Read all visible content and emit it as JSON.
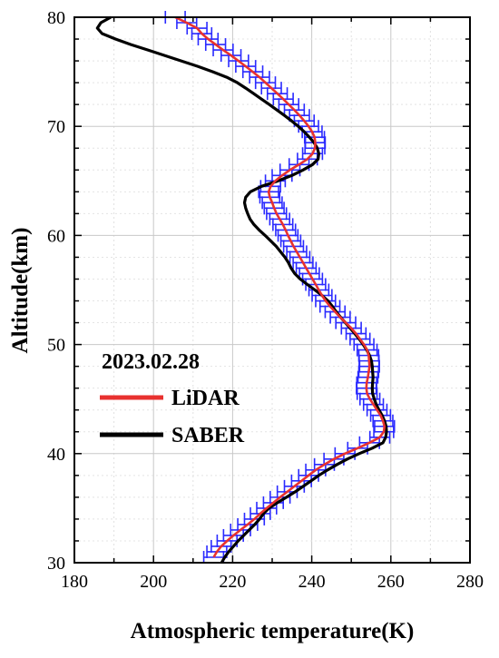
{
  "chart_data": {
    "type": "line",
    "xlabel": "Atmospheric temperature(K)",
    "ylabel": "Altitude(km)",
    "xlim": [
      180,
      280
    ],
    "ylim": [
      30,
      80
    ],
    "x_ticks": [
      180,
      200,
      220,
      240,
      260,
      280
    ],
    "y_ticks": [
      30,
      40,
      50,
      60,
      70,
      80
    ],
    "grid": true,
    "legend_position": "center-left",
    "legend_title": "2023.02.28",
    "series": [
      {
        "name": "LiDAR",
        "color": "#e8312f",
        "error_bar_color": "#2a2aff",
        "x_error": 2.5,
        "altitude": [
          30.5,
          31,
          31.5,
          32,
          32.5,
          33,
          33.5,
          34,
          34.5,
          35,
          35.5,
          36,
          36.5,
          37,
          37.5,
          38,
          38.5,
          39,
          39.5,
          40,
          40.5,
          41,
          41.5,
          42,
          42.5,
          43,
          43.5,
          44,
          44.5,
          45,
          45.5,
          46,
          46.5,
          47,
          47.5,
          48,
          48.5,
          49,
          49.5,
          50,
          50.5,
          51,
          51.5,
          52,
          52.5,
          53,
          53.5,
          54,
          54.5,
          55,
          55.5,
          56,
          56.5,
          57,
          57.5,
          58,
          58.5,
          59,
          59.5,
          60,
          60.5,
          61,
          61.5,
          62,
          62.5,
          63,
          63.5,
          64,
          64.5,
          65,
          65.5,
          66,
          66.5,
          67,
          67.5,
          68,
          68.5,
          69,
          69.5,
          70,
          70.5,
          71,
          71.5,
          72,
          72.5,
          73,
          73.5,
          74,
          74.5,
          75,
          75.5,
          76,
          76.5,
          77,
          77.5,
          78,
          78.5,
          79,
          79.5,
          80
        ],
        "temperature": [
          215.2,
          216.0,
          217.1,
          218.6,
          220.2,
          222.0,
          223.8,
          225.5,
          227.0,
          228.6,
          230.3,
          232.0,
          233.8,
          235.6,
          237.4,
          239.2,
          241.0,
          243.2,
          245.6,
          248.4,
          251.6,
          254.6,
          257.2,
          258.2,
          258.4,
          258.0,
          257.4,
          256.5,
          255.6,
          254.7,
          254.0,
          253.8,
          253.9,
          254.2,
          254.4,
          254.6,
          254.5,
          254.4,
          254.0,
          253.2,
          252.2,
          251.2,
          250.0,
          248.6,
          247.2,
          245.9,
          244.6,
          243.5,
          242.6,
          241.8,
          241.0,
          240.2,
          239.4,
          238.6,
          237.8,
          237.0,
          236.2,
          235.4,
          234.7,
          234.0,
          233.4,
          232.7,
          231.9,
          231.1,
          230.5,
          230.0,
          229.4,
          229.1,
          229.6,
          230.8,
          232.5,
          234.5,
          236.8,
          238.9,
          240.2,
          240.8,
          240.9,
          240.7,
          240.1,
          239.2,
          238.1,
          236.9,
          235.6,
          234.2,
          232.8,
          231.3,
          229.8,
          228.3,
          226.8,
          225.1,
          223.3,
          221.5,
          219.6,
          217.6,
          215.7,
          213.8,
          212.2,
          211.0,
          208.4,
          205.5
        ]
      },
      {
        "name": "SABER",
        "color": "#000000",
        "altitude": [
          30,
          30.5,
          31,
          31.5,
          32,
          32.5,
          33,
          33.5,
          34,
          34.5,
          35,
          35.5,
          36,
          36.5,
          37,
          37.5,
          38,
          38.5,
          39,
          39.5,
          40,
          40.5,
          41,
          41.5,
          42,
          42.5,
          43,
          43.5,
          44,
          44.5,
          45,
          45.5,
          46,
          46.5,
          47,
          47.5,
          48,
          48.5,
          49,
          49.5,
          50,
          50.5,
          51,
          51.5,
          52,
          52.5,
          53,
          53.5,
          54,
          54.5,
          55,
          55.5,
          56,
          56.5,
          57,
          57.5,
          58,
          58.5,
          59,
          59.5,
          60,
          60.5,
          61,
          61.5,
          62,
          62.5,
          63,
          63.5,
          64,
          64.5,
          65,
          65.5,
          66,
          66.5,
          67,
          67.5,
          68,
          68.5,
          69,
          69.5,
          70,
          70.5,
          71,
          71.5,
          72,
          72.5,
          73,
          73.5,
          74,
          74.5,
          75,
          75.5,
          76,
          76.5,
          77,
          77.5,
          78,
          78.5,
          79,
          79.5,
          80
        ],
        "temperature": [
          217.2,
          218.0,
          219.0,
          220.2,
          221.4,
          222.8,
          224.2,
          225.6,
          226.8,
          227.8,
          229.2,
          231.3,
          233.6,
          235.8,
          237.8,
          239.8,
          241.8,
          244.0,
          246.4,
          249.0,
          252.0,
          255.3,
          258.0,
          258.7,
          258.9,
          258.8,
          258.4,
          257.8,
          257.0,
          256.3,
          255.8,
          255.4,
          255.3,
          255.4,
          255.5,
          255.4,
          255.3,
          255.1,
          254.6,
          253.9,
          253.0,
          252.0,
          250.9,
          249.7,
          248.5,
          247.3,
          246.2,
          245.2,
          244.1,
          242.6,
          240.8,
          238.9,
          237.1,
          235.7,
          234.8,
          234.1,
          233.2,
          232.1,
          231.0,
          229.6,
          228.2,
          226.7,
          225.4,
          224.4,
          223.8,
          223.3,
          223.0,
          223.3,
          224.5,
          227.3,
          231.5,
          235.0,
          237.8,
          240.2,
          241.6,
          241.8,
          241.4,
          240.6,
          239.4,
          238.1,
          236.6,
          234.9,
          233.1,
          231.2,
          229.3,
          227.3,
          225.3,
          223.3,
          221.2,
          218.5,
          215.0,
          211.2,
          207.0,
          202.8,
          198.6,
          194.3,
          190.4,
          187.0,
          185.8,
          186.7,
          189.2
        ]
      }
    ]
  }
}
